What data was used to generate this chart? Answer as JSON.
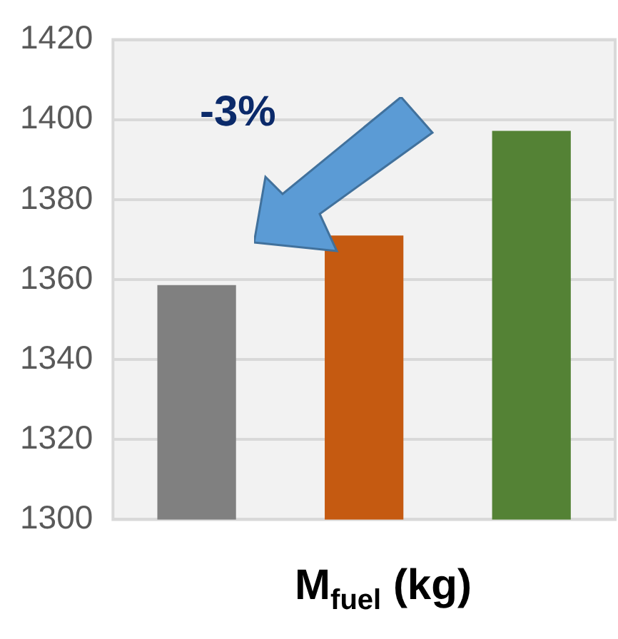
{
  "chart_data": {
    "type": "bar",
    "xlabel": "M$_{fuel}$ (kg)",
    "categories": [
      null,
      null,
      null
    ],
    "values": [
      1358.6,
      1371,
      1397.2
    ],
    "colors": [
      "#808080",
      "#c55a11",
      "#548235"
    ],
    "ylim": [
      1300,
      1420
    ],
    "yticks": [
      1300,
      1320,
      1340,
      1360,
      1380,
      1400,
      1420
    ],
    "grid": "y",
    "legend": false,
    "annotations": [
      "-3%"
    ]
  }
}
